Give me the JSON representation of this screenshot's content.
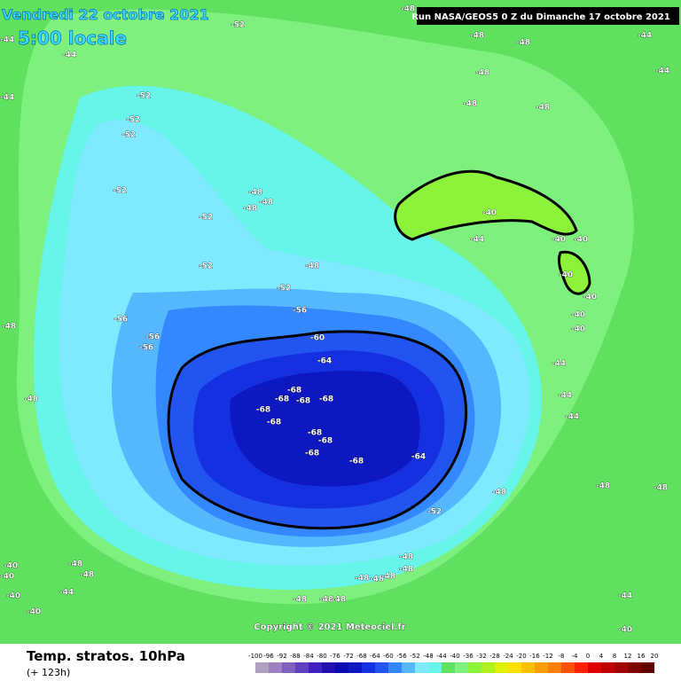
{
  "header": {
    "date": "Vendredi 22 octobre 2021",
    "time": "5:00 locale",
    "run": "Run NASA/GEOS5 0 Z du Dimanche 17 octobre 2021"
  },
  "footer": {
    "title": "Temp. stratos. 10hPa",
    "lead": "(+ 123h)",
    "copyright": "Copyright © 2021 Meteociel.fr"
  },
  "labels": [
    "-48",
    "-52",
    "-44",
    "-44",
    "-44",
    "-52",
    "-52",
    "-52",
    "-52",
    "-52",
    "-52",
    "-52",
    "-56",
    "-56",
    "-56",
    "-56",
    "-60",
    "-64",
    "-68",
    "-68",
    "-68",
    "-68",
    "-68",
    "-68",
    "-68",
    "-68",
    "-68",
    "-68",
    "-64",
    "-48",
    "-48",
    "-48",
    "-48",
    "-48",
    "-48",
    "-48",
    "-48",
    "-48",
    "-40",
    "-44",
    "-40",
    "-40",
    "-40",
    "-40",
    "-40",
    "-40",
    "-44",
    "-44",
    "-44",
    "-48",
    "-48",
    "-48",
    "-48",
    "-48",
    "-48",
    "-48",
    "-48",
    "-48",
    "-48",
    "-48",
    "-48",
    "-48",
    "-48",
    "-48",
    "-44",
    "-40",
    "-40",
    "-40",
    "-40",
    "-40",
    "-44",
    "-44",
    "-44",
    "-52"
  ],
  "colorbar": {
    "ticks": [
      -100,
      -96,
      -92,
      -88,
      -84,
      -80,
      -76,
      -72,
      -68,
      -64,
      -60,
      -56,
      -52,
      -48,
      -44,
      -40,
      -36,
      -32,
      -28,
      -24,
      -20,
      -16,
      -12,
      -8,
      -4,
      0,
      4,
      8,
      12,
      16,
      20
    ]
  }
}
